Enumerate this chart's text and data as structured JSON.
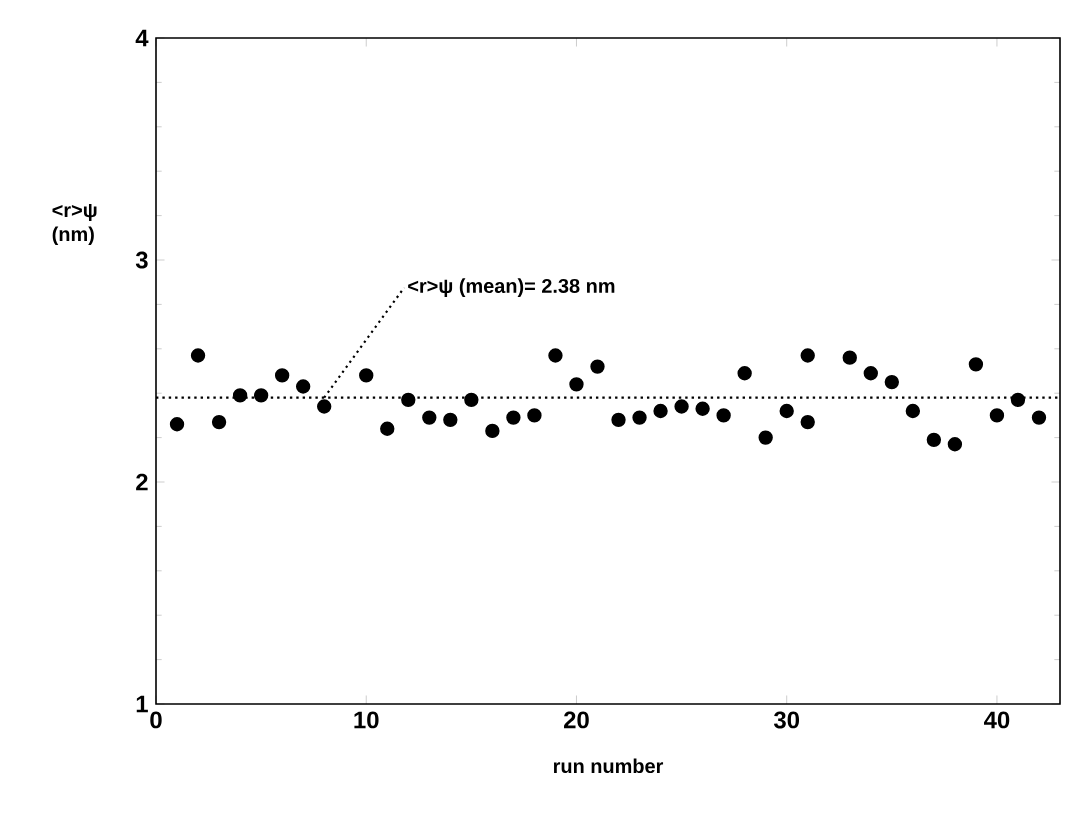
{
  "chart_data": {
    "type": "scatter",
    "xlabel": "run number",
    "ylabel": "<r>ψ (nm)",
    "x": [
      1,
      2,
      3,
      4,
      5,
      6,
      7,
      8,
      10,
      11,
      12,
      13,
      14,
      15,
      16,
      17,
      18,
      19,
      20,
      21,
      22,
      23,
      24,
      25,
      26,
      27,
      28,
      29,
      30,
      31,
      31,
      33,
      34,
      35,
      36,
      37,
      38,
      39,
      40,
      41,
      42
    ],
    "values": [
      2.26,
      2.57,
      2.27,
      2.39,
      2.39,
      2.48,
      2.43,
      2.34,
      2.48,
      2.24,
      2.37,
      2.29,
      2.28,
      2.37,
      2.23,
      2.29,
      2.3,
      2.57,
      2.44,
      2.52,
      2.28,
      2.29,
      2.32,
      2.34,
      2.33,
      2.3,
      2.49,
      2.2,
      2.32,
      2.57,
      2.27,
      2.56,
      2.49,
      2.45,
      2.32,
      2.19,
      2.17,
      2.53,
      2.3,
      2.37,
      2.29
    ],
    "color": "#000000",
    "marker": "circle",
    "grid": false,
    "xlim": [
      0,
      43
    ],
    "ylim": [
      1,
      4
    ],
    "xticks": [
      0,
      10,
      20,
      30,
      40
    ],
    "yticks": [
      1,
      2,
      3,
      4
    ],
    "ref_lines": [
      {
        "axis": "y",
        "value": 2.38,
        "line_style": "dotted"
      }
    ],
    "annotations": [
      {
        "text": "<r>ψ (mean)= 2.38 nm",
        "x": 8,
        "y": 2.38
      }
    ]
  }
}
